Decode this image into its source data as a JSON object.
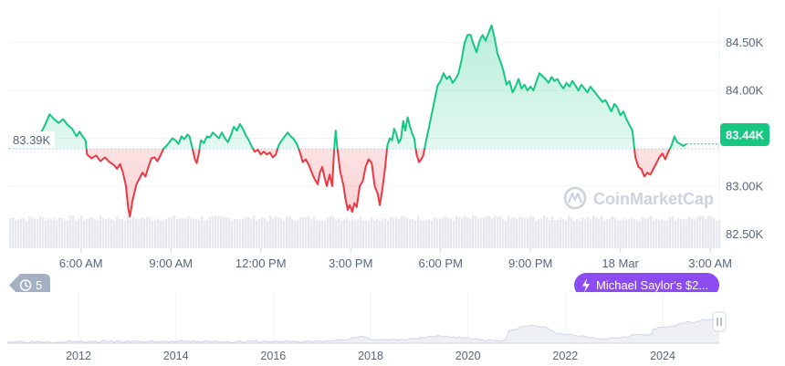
{
  "chart_data": {
    "type": "area",
    "title": "",
    "baseline": {
      "label": "83.39K",
      "value": 83.39
    },
    "current_price": {
      "label": "83.44K",
      "value": 83.44
    },
    "y_axis": {
      "ticks": [
        "84.50K",
        "84.00K",
        "83.50K",
        "83.00K",
        "82.50K"
      ],
      "values": [
        84.5,
        84.0,
        83.5,
        83.0,
        82.5
      ],
      "unit": "K",
      "ylim": [
        82.35,
        84.85
      ]
    },
    "x_axis": {
      "ticks": [
        "6:00 AM",
        "9:00 AM",
        "12:00 PM",
        "3:00 PM",
        "6:00 PM",
        "9:00 PM",
        "18 Mar",
        "3:00 AM"
      ],
      "tick_hours": [
        6,
        9,
        12,
        15,
        18,
        21,
        24,
        27
      ],
      "xlim_hours": [
        3.6,
        27.3
      ]
    },
    "series": [
      {
        "color_up": "#16c784",
        "color_down": "#ea3943",
        "points": [
          [
            3.6,
            83.4
          ],
          [
            3.85,
            83.46
          ],
          [
            4.05,
            83.48
          ],
          [
            4.25,
            83.43
          ],
          [
            4.45,
            83.47
          ],
          [
            4.65,
            83.55
          ],
          [
            4.8,
            83.64
          ],
          [
            4.95,
            83.75
          ],
          [
            5.1,
            83.7
          ],
          [
            5.25,
            83.66
          ],
          [
            5.4,
            83.7
          ],
          [
            5.55,
            83.64
          ],
          [
            5.7,
            83.6
          ],
          [
            5.85,
            83.52
          ],
          [
            5.95,
            83.57
          ],
          [
            6.05,
            83.52
          ],
          [
            6.15,
            83.48
          ],
          [
            6.2,
            83.33
          ],
          [
            6.35,
            83.29
          ],
          [
            6.5,
            83.32
          ],
          [
            6.65,
            83.26
          ],
          [
            6.8,
            83.3
          ],
          [
            6.95,
            83.25
          ],
          [
            7.1,
            83.22
          ],
          [
            7.2,
            83.18
          ],
          [
            7.3,
            83.23
          ],
          [
            7.4,
            83.14
          ],
          [
            7.5,
            83.0
          ],
          [
            7.57,
            82.78
          ],
          [
            7.63,
            82.68
          ],
          [
            7.72,
            82.85
          ],
          [
            7.85,
            83.02
          ],
          [
            7.95,
            83.08
          ],
          [
            8.05,
            83.14
          ],
          [
            8.15,
            83.1
          ],
          [
            8.25,
            83.2
          ],
          [
            8.35,
            83.29
          ],
          [
            8.45,
            83.3
          ],
          [
            8.55,
            83.26
          ],
          [
            8.65,
            83.32
          ],
          [
            8.75,
            83.39
          ],
          [
            8.85,
            83.42
          ],
          [
            8.95,
            83.46
          ],
          [
            9.05,
            83.5
          ],
          [
            9.15,
            83.48
          ],
          [
            9.25,
            83.44
          ],
          [
            9.35,
            83.52
          ],
          [
            9.45,
            83.49
          ],
          [
            9.55,
            83.54
          ],
          [
            9.62,
            83.52
          ],
          [
            9.72,
            83.39
          ],
          [
            9.8,
            83.28
          ],
          [
            9.86,
            83.24
          ],
          [
            9.93,
            83.34
          ],
          [
            10.0,
            83.48
          ],
          [
            10.1,
            83.45
          ],
          [
            10.2,
            83.52
          ],
          [
            10.3,
            83.51
          ],
          [
            10.4,
            83.56
          ],
          [
            10.5,
            83.53
          ],
          [
            10.6,
            83.5
          ],
          [
            10.7,
            83.56
          ],
          [
            10.8,
            83.5
          ],
          [
            10.9,
            83.46
          ],
          [
            11.0,
            83.53
          ],
          [
            11.1,
            83.62
          ],
          [
            11.2,
            83.58
          ],
          [
            11.3,
            83.65
          ],
          [
            11.4,
            83.6
          ],
          [
            11.5,
            83.53
          ],
          [
            11.6,
            83.48
          ],
          [
            11.7,
            83.41
          ],
          [
            11.8,
            83.36
          ],
          [
            11.9,
            83.38
          ],
          [
            12.0,
            83.33
          ],
          [
            12.1,
            83.36
          ],
          [
            12.2,
            83.33
          ],
          [
            12.3,
            83.35
          ],
          [
            12.4,
            83.3
          ],
          [
            12.5,
            83.33
          ],
          [
            12.6,
            83.43
          ],
          [
            12.7,
            83.48
          ],
          [
            12.8,
            83.52
          ],
          [
            12.9,
            83.56
          ],
          [
            13.0,
            83.52
          ],
          [
            13.1,
            83.49
          ],
          [
            13.2,
            83.44
          ],
          [
            13.3,
            83.36
          ],
          [
            13.4,
            83.25
          ],
          [
            13.5,
            83.28
          ],
          [
            13.6,
            83.22
          ],
          [
            13.7,
            83.14
          ],
          [
            13.8,
            83.07
          ],
          [
            13.9,
            83.02
          ],
          [
            13.97,
            83.14
          ],
          [
            14.05,
            83.2
          ],
          [
            14.12,
            83.1
          ],
          [
            14.2,
            83.0
          ],
          [
            14.3,
            83.12
          ],
          [
            14.38,
            83.0
          ],
          [
            14.45,
            83.4
          ],
          [
            14.5,
            83.58
          ],
          [
            14.55,
            83.4
          ],
          [
            14.65,
            83.15
          ],
          [
            14.75,
            83.02
          ],
          [
            14.82,
            82.88
          ],
          [
            14.9,
            82.75
          ],
          [
            14.97,
            82.8
          ],
          [
            15.05,
            82.73
          ],
          [
            15.12,
            82.82
          ],
          [
            15.2,
            82.78
          ],
          [
            15.3,
            83.0
          ],
          [
            15.4,
            83.05
          ],
          [
            15.5,
            83.2
          ],
          [
            15.6,
            83.28
          ],
          [
            15.7,
            83.24
          ],
          [
            15.8,
            83.0
          ],
          [
            15.9,
            82.92
          ],
          [
            15.97,
            82.8
          ],
          [
            16.05,
            82.95
          ],
          [
            16.15,
            83.2
          ],
          [
            16.22,
            83.42
          ],
          [
            16.3,
            83.5
          ],
          [
            16.38,
            83.48
          ],
          [
            16.45,
            83.6
          ],
          [
            16.52,
            83.55
          ],
          [
            16.6,
            83.45
          ],
          [
            16.68,
            83.5
          ],
          [
            16.75,
            83.68
          ],
          [
            16.82,
            83.58
          ],
          [
            16.9,
            83.72
          ],
          [
            16.98,
            83.62
          ],
          [
            17.05,
            83.55
          ],
          [
            17.12,
            83.5
          ],
          [
            17.2,
            83.33
          ],
          [
            17.28,
            83.25
          ],
          [
            17.35,
            83.28
          ],
          [
            17.42,
            83.32
          ],
          [
            17.5,
            83.45
          ],
          [
            17.6,
            83.6
          ],
          [
            17.7,
            83.75
          ],
          [
            17.8,
            83.9
          ],
          [
            17.9,
            84.05
          ],
          [
            18.0,
            84.1
          ],
          [
            18.1,
            84.18
          ],
          [
            18.2,
            84.12
          ],
          [
            18.3,
            84.15
          ],
          [
            18.4,
            84.08
          ],
          [
            18.5,
            84.12
          ],
          [
            18.6,
            84.18
          ],
          [
            18.7,
            84.32
          ],
          [
            18.8,
            84.5
          ],
          [
            18.9,
            84.58
          ],
          [
            19.0,
            84.58
          ],
          [
            19.1,
            84.48
          ],
          [
            19.2,
            84.4
          ],
          [
            19.3,
            84.52
          ],
          [
            19.4,
            84.58
          ],
          [
            19.5,
            84.52
          ],
          [
            19.6,
            84.6
          ],
          [
            19.7,
            84.68
          ],
          [
            19.8,
            84.55
          ],
          [
            19.9,
            84.38
          ],
          [
            20.0,
            84.3
          ],
          [
            20.1,
            84.2
          ],
          [
            20.2,
            84.06
          ],
          [
            20.3,
            84.1
          ],
          [
            20.4,
            83.98
          ],
          [
            20.5,
            84.04
          ],
          [
            20.6,
            84.12
          ],
          [
            20.7,
            84.02
          ],
          [
            20.8,
            84.06
          ],
          [
            20.9,
            84.0
          ],
          [
            21.0,
            84.04
          ],
          [
            21.1,
            84.0
          ],
          [
            21.2,
            84.1
          ],
          [
            21.3,
            84.18
          ],
          [
            21.4,
            84.15
          ],
          [
            21.5,
            84.12
          ],
          [
            21.6,
            84.08
          ],
          [
            21.7,
            84.14
          ],
          [
            21.8,
            84.1
          ],
          [
            21.9,
            84.12
          ],
          [
            22.0,
            84.06
          ],
          [
            22.1,
            84.02
          ],
          [
            22.2,
            84.08
          ],
          [
            22.3,
            84.04
          ],
          [
            22.4,
            84.1
          ],
          [
            22.5,
            84.05
          ],
          [
            22.6,
            84.0
          ],
          [
            22.7,
            84.06
          ],
          [
            22.8,
            84.02
          ],
          [
            22.9,
            83.98
          ],
          [
            23.0,
            84.04
          ],
          [
            23.1,
            84.0
          ],
          [
            23.2,
            83.96
          ],
          [
            23.3,
            83.92
          ],
          [
            23.4,
            83.88
          ],
          [
            23.5,
            83.9
          ],
          [
            23.6,
            83.84
          ],
          [
            23.7,
            83.78
          ],
          [
            23.8,
            83.86
          ],
          [
            23.9,
            83.82
          ],
          [
            24.0,
            83.74
          ],
          [
            24.1,
            83.78
          ],
          [
            24.2,
            83.7
          ],
          [
            24.3,
            83.64
          ],
          [
            24.4,
            83.58
          ],
          [
            24.5,
            83.3
          ],
          [
            24.6,
            83.2
          ],
          [
            24.7,
            83.18
          ],
          [
            24.8,
            83.1
          ],
          [
            24.9,
            83.14
          ],
          [
            25.0,
            83.12
          ],
          [
            25.1,
            83.18
          ],
          [
            25.2,
            83.24
          ],
          [
            25.3,
            83.3
          ],
          [
            25.4,
            83.34
          ],
          [
            25.5,
            83.28
          ],
          [
            25.6,
            83.36
          ],
          [
            25.7,
            83.42
          ],
          [
            25.8,
            83.52
          ],
          [
            25.9,
            83.46
          ],
          [
            26.0,
            83.44
          ],
          [
            26.1,
            83.42
          ],
          [
            26.2,
            83.44
          ]
        ]
      }
    ],
    "volume": {
      "color": "#e7e9ee"
    },
    "history_navigator": {
      "x_ticks": [
        "2012",
        "2014",
        "2016",
        "2018",
        "2020",
        "2022",
        "2024"
      ],
      "line_color": "#cfd6e4"
    },
    "grid": true
  },
  "ui": {
    "watermark": "CoinMarketCap",
    "events_button": {
      "count": "5"
    },
    "news_pill": {
      "label": "Michael Saylor's $2..."
    },
    "colors": {
      "up": "#16c784",
      "down": "#ea3943",
      "pill": "#8d4cf2",
      "badge": "#16c784",
      "axis_text": "#58667e"
    }
  }
}
